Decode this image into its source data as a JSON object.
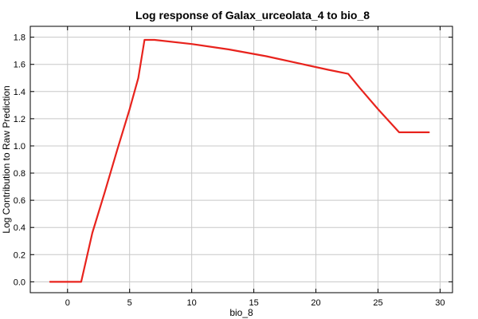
{
  "chart_data": {
    "type": "line",
    "title": "Log response of Galax_urceolata_4 to bio_8",
    "xlabel": "bio_8",
    "ylabel": "Log Contribution to Raw Prediction",
    "xlim": [
      -3,
      31
    ],
    "ylim": [
      -0.08,
      1.88
    ],
    "x_ticks": [
      0,
      5,
      10,
      15,
      20,
      25,
      30
    ],
    "y_ticks": [
      0.0,
      0.2,
      0.4,
      0.6,
      0.8,
      1.0,
      1.2,
      1.4,
      1.6,
      1.8
    ],
    "y_tick_labels": [
      "0.0",
      "0.2",
      "0.4",
      "0.6",
      "0.8",
      "1.0",
      "1.2",
      "1.4",
      "1.6",
      "1.8"
    ],
    "grid": true,
    "series_color": "#e8231d",
    "x": [
      -1.4,
      1.1,
      2.0,
      3.0,
      4.0,
      5.0,
      5.7,
      6.2,
      7.0,
      10.0,
      13.0,
      16.0,
      19.0,
      21.0,
      22.6,
      23.5,
      25.0,
      26.7,
      29.1
    ],
    "y": [
      0.0,
      0.0,
      0.36,
      0.66,
      0.97,
      1.27,
      1.5,
      1.78,
      1.78,
      1.75,
      1.71,
      1.66,
      1.6,
      1.56,
      1.53,
      1.43,
      1.27,
      1.1,
      1.1
    ]
  }
}
